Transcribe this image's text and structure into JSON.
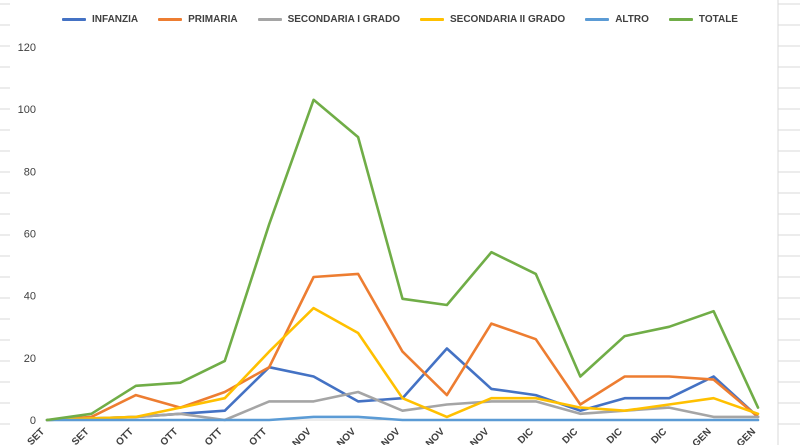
{
  "chart_data": {
    "type": "line",
    "title": "",
    "xlabel": "",
    "ylabel": "",
    "ylim": [
      0,
      120
    ],
    "yticks": [
      0,
      20,
      40,
      60,
      80,
      100,
      120
    ],
    "grid": false,
    "legend_position": "top",
    "categories": [
      "SET",
      "SET",
      "OTT",
      "OTT",
      "OTT",
      "OTT",
      "NOV",
      "NOV",
      "NOV",
      "NOV",
      "NOV",
      "DIC",
      "DIC",
      "DIC",
      "DIC",
      "GEN",
      "GEN"
    ],
    "series": [
      {
        "name": "INFANZIA",
        "color": "#4472C4",
        "values": [
          0,
          0.5,
          1,
          2,
          3,
          17,
          14,
          6,
          7,
          23,
          10,
          8,
          3,
          7,
          7,
          14,
          1
        ]
      },
      {
        "name": "PRIMARIA",
        "color": "#ED7D31",
        "values": [
          0,
          1,
          8,
          4,
          9,
          17,
          46,
          47,
          22,
          8,
          31,
          26,
          5,
          14,
          14,
          13,
          1
        ]
      },
      {
        "name": "SECONDARIA I GRADO",
        "color": "#A5A5A5",
        "values": [
          0,
          0.5,
          1,
          2,
          0,
          6,
          6,
          9,
          3,
          5,
          6,
          6,
          2,
          3,
          4,
          1,
          1
        ]
      },
      {
        "name": "SECONDARIA II GRADO",
        "color": "#FFC000",
        "values": [
          0,
          0.5,
          1,
          4,
          7,
          22,
          36,
          28,
          7,
          1,
          7,
          7,
          4,
          3,
          5,
          7,
          2
        ]
      },
      {
        "name": "ALTRO",
        "color": "#5B9BD5",
        "values": [
          0,
          0,
          0,
          0,
          0,
          0,
          1,
          1,
          0,
          0,
          0,
          0,
          0,
          0,
          0,
          0,
          0
        ]
      },
      {
        "name": "TOTALE",
        "color": "#70AD47",
        "values": [
          0,
          2,
          11,
          12,
          19,
          63,
          103,
          91,
          39,
          37,
          54,
          47,
          14,
          27,
          30,
          35,
          4
        ]
      }
    ]
  }
}
